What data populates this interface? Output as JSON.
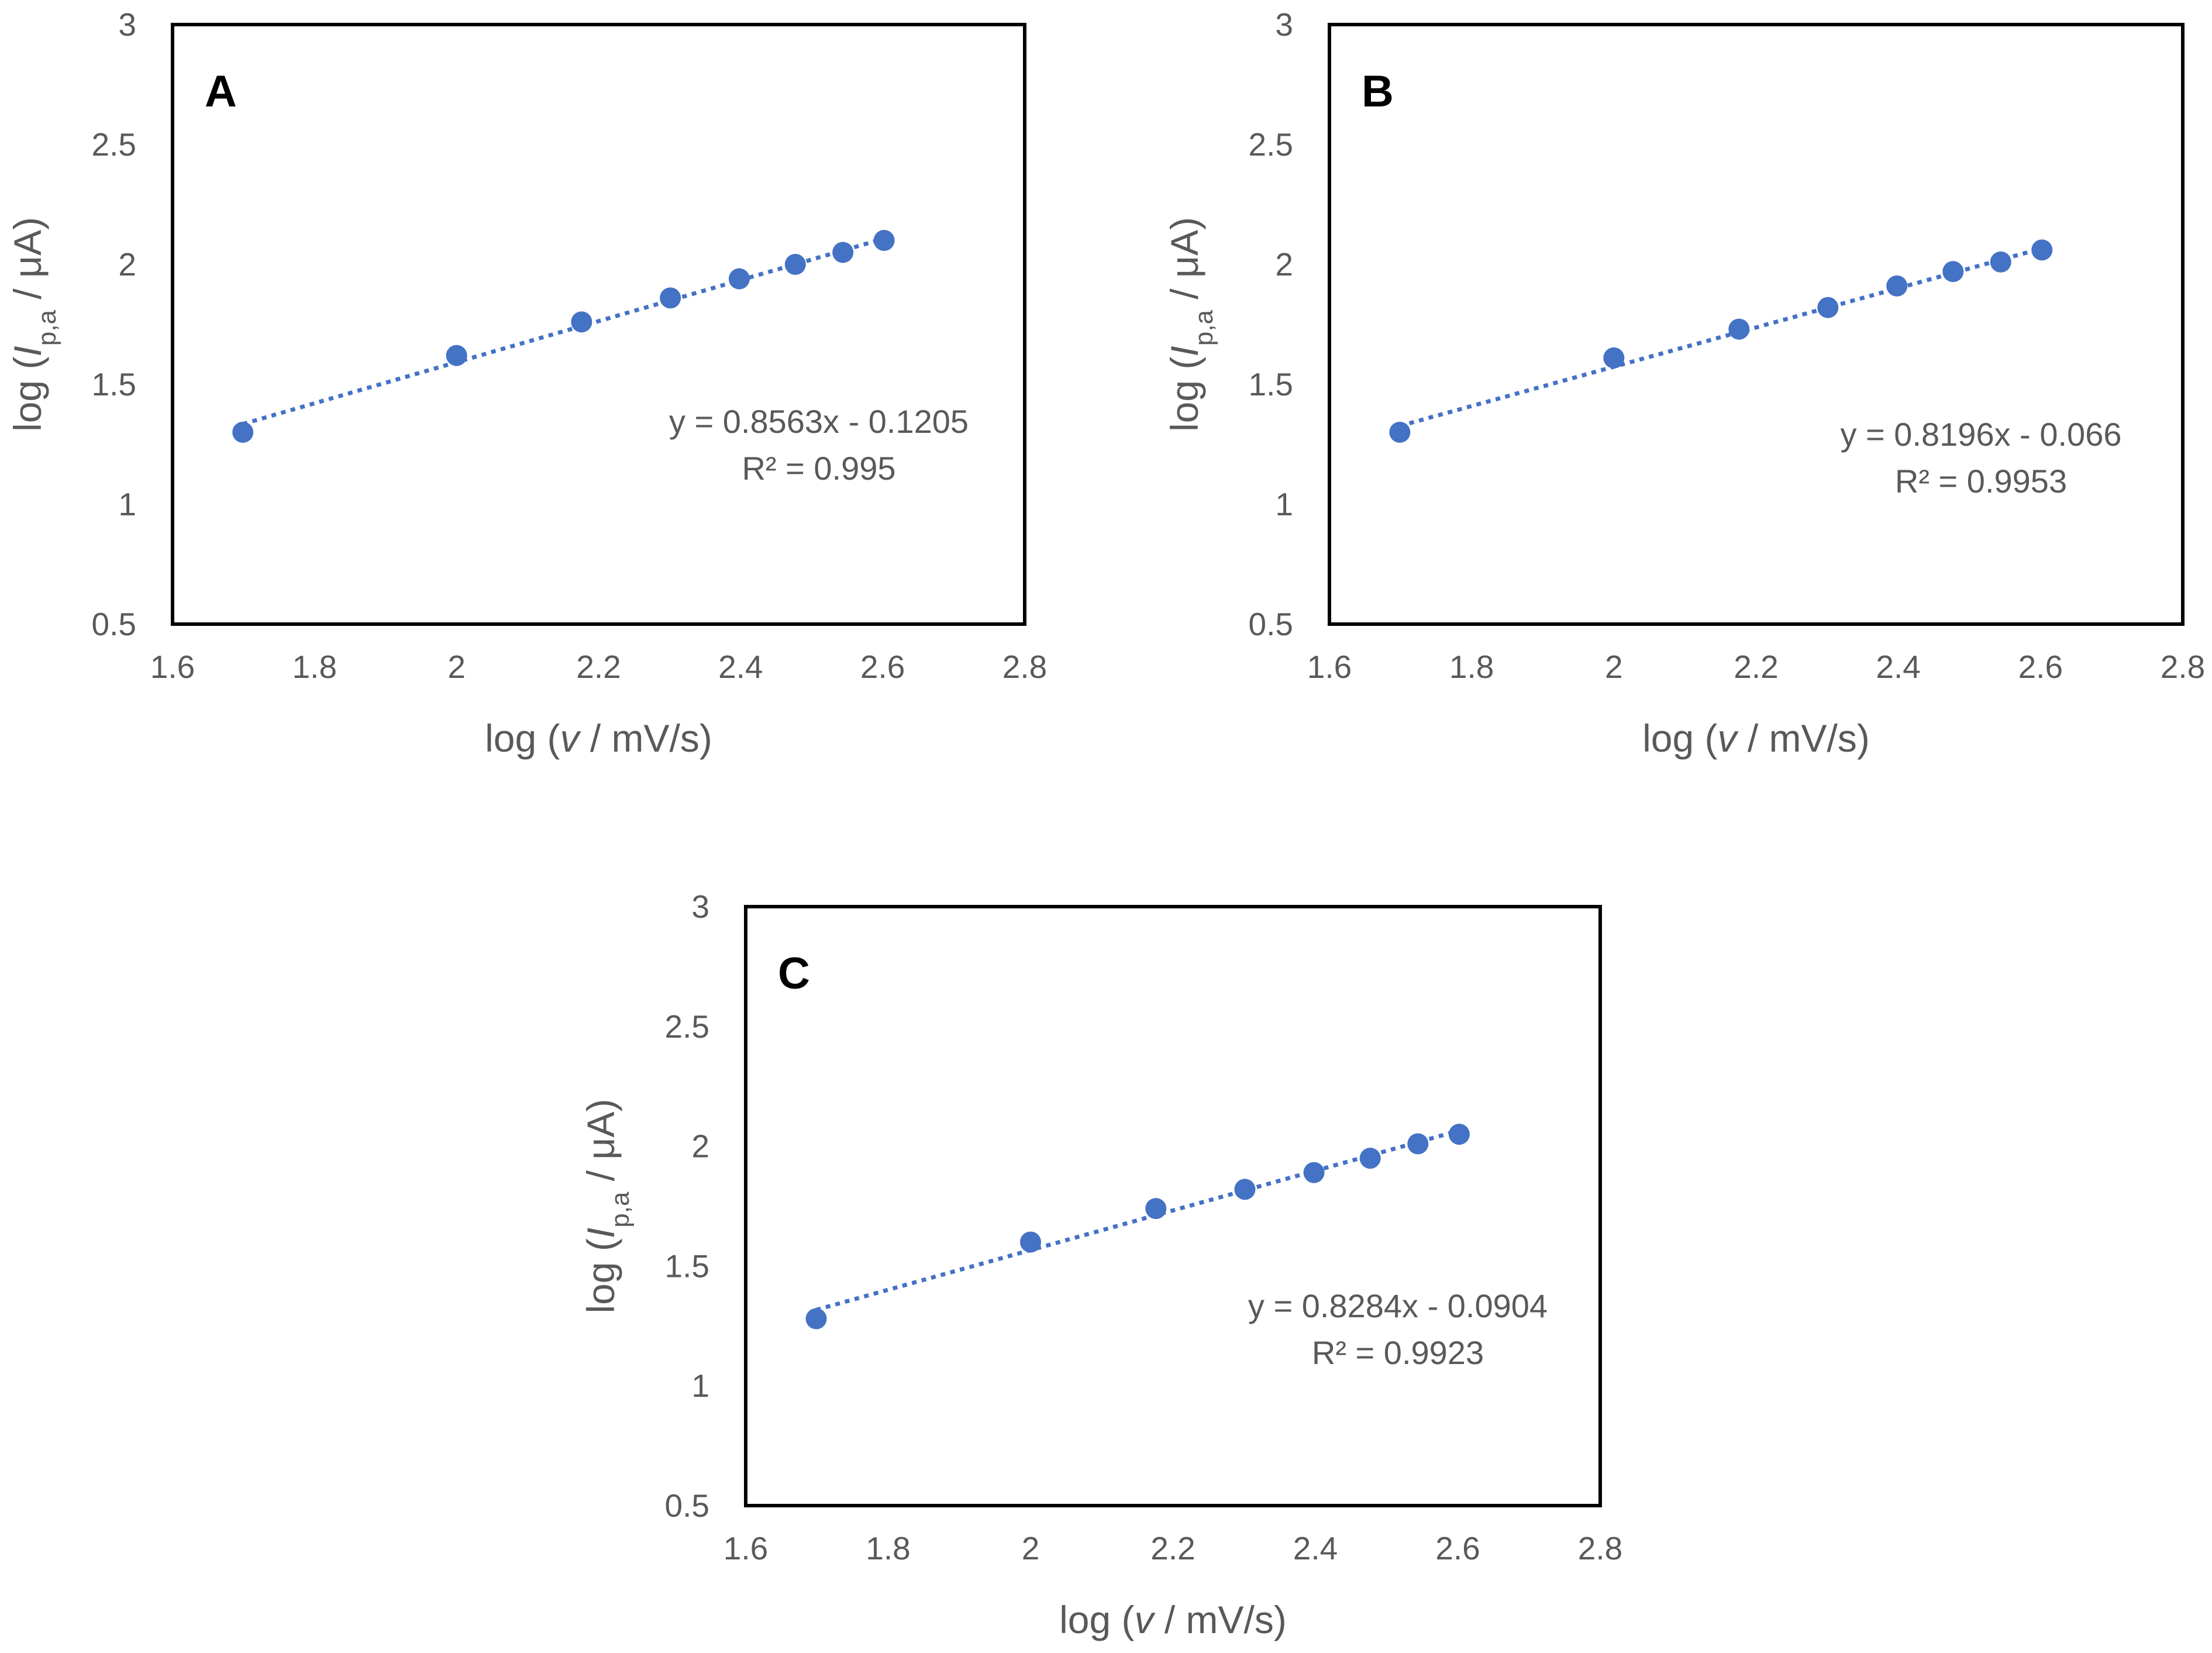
{
  "chart_data": [
    {
      "id": "A",
      "type": "scatter",
      "panel_label": "A",
      "xlabel_pre": "log (",
      "xlabel_var": "v",
      "xlabel_post": " / mV/s)",
      "ylabel_pre": "log (",
      "ylabel_var": "I",
      "ylabel_sub": "p,a",
      "ylabel_post": " / μA)",
      "xlim": [
        1.6,
        2.8
      ],
      "ylim": [
        0.5,
        3
      ],
      "x_ticks": [
        "1.6",
        "1.8",
        "2",
        "2.2",
        "2.4",
        "2.6",
        "2.8"
      ],
      "y_ticks": [
        "0.5",
        "1",
        "1.5",
        "2",
        "2.5",
        "3"
      ],
      "x": [
        1.699,
        2.0,
        2.176,
        2.301,
        2.398,
        2.477,
        2.544,
        2.602
      ],
      "y": [
        1.3,
        1.62,
        1.76,
        1.86,
        1.94,
        2.0,
        2.05,
        2.1
      ],
      "trendline": {
        "slope": 0.8563,
        "intercept": -0.1205,
        "equation": "y = 0.8563x - 0.1205",
        "r2": "R² = 0.995"
      },
      "color": "#4472C4"
    },
    {
      "id": "B",
      "type": "scatter",
      "panel_label": "B",
      "xlabel_pre": "log (",
      "xlabel_var": "v",
      "xlabel_post": " / mV/s)",
      "ylabel_pre": "log (",
      "ylabel_var": "I",
      "ylabel_sub": "p,a",
      "ylabel_post": " / μA)",
      "xlim": [
        1.6,
        2.8
      ],
      "ylim": [
        0.5,
        3
      ],
      "x_ticks": [
        "1.6",
        "1.8",
        "2",
        "2.2",
        "2.4",
        "2.6",
        "2.8"
      ],
      "y_ticks": [
        "0.5",
        "1",
        "1.5",
        "2",
        "2.5",
        "3"
      ],
      "x": [
        1.699,
        2.0,
        2.176,
        2.301,
        2.398,
        2.477,
        2.544,
        2.602
      ],
      "y": [
        1.3,
        1.61,
        1.73,
        1.82,
        1.91,
        1.97,
        2.01,
        2.06
      ],
      "trendline": {
        "slope": 0.8196,
        "intercept": -0.066,
        "equation": "y = 0.8196x - 0.066",
        "r2": "R² = 0.9953"
      },
      "color": "#4472C4"
    },
    {
      "id": "C",
      "type": "scatter",
      "panel_label": "C",
      "xlabel_pre": "log (",
      "xlabel_var": "v",
      "xlabel_post": " / mV/s)",
      "ylabel_pre": "log (",
      "ylabel_var": "I",
      "ylabel_sub": "p,a",
      "ylabel_post": " / μA)",
      "xlim": [
        1.6,
        2.8
      ],
      "ylim": [
        0.5,
        3
      ],
      "x_ticks": [
        "1.6",
        "1.8",
        "2",
        "2.2",
        "2.4",
        "2.6",
        "2.8"
      ],
      "y_ticks": [
        "0.5",
        "1",
        "1.5",
        "2",
        "2.5",
        "3"
      ],
      "x": [
        1.699,
        2.0,
        2.176,
        2.301,
        2.398,
        2.477,
        2.544,
        2.602
      ],
      "y": [
        1.28,
        1.6,
        1.74,
        1.82,
        1.89,
        1.95,
        2.01,
        2.05
      ],
      "trendline": {
        "slope": 0.8284,
        "intercept": -0.0904,
        "equation": "y = 0.8284x - 0.0904",
        "r2": "R² = 0.9923"
      },
      "color": "#4472C4"
    }
  ]
}
